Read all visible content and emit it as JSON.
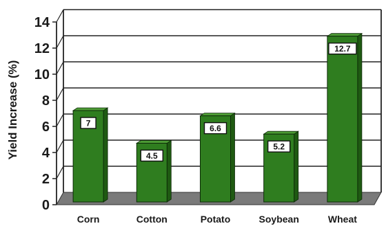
{
  "chart_data": {
    "type": "bar",
    "title": "",
    "xlabel": "",
    "ylabel": "Yield Increase (%)",
    "categories": [
      "Corn",
      "Cotton",
      "Potato",
      "Soybean",
      "Wheat"
    ],
    "values": [
      7,
      4.5,
      6.6,
      5.2,
      12.7
    ],
    "data_labels": [
      "7",
      "4.5",
      "6.6",
      "5.2",
      "12.7"
    ],
    "yticks": [
      "0",
      "2",
      "4",
      "6",
      "8",
      "10",
      "12",
      "14"
    ],
    "ylim": [
      0,
      14
    ],
    "grid": true,
    "style": "3d-perspective",
    "colors": {
      "bar_front": "#2f7d1f",
      "bar_top": "#4d9b35",
      "bar_side": "#1f5a12",
      "floor": "#7a7a7a",
      "grid": "#222222"
    }
  }
}
